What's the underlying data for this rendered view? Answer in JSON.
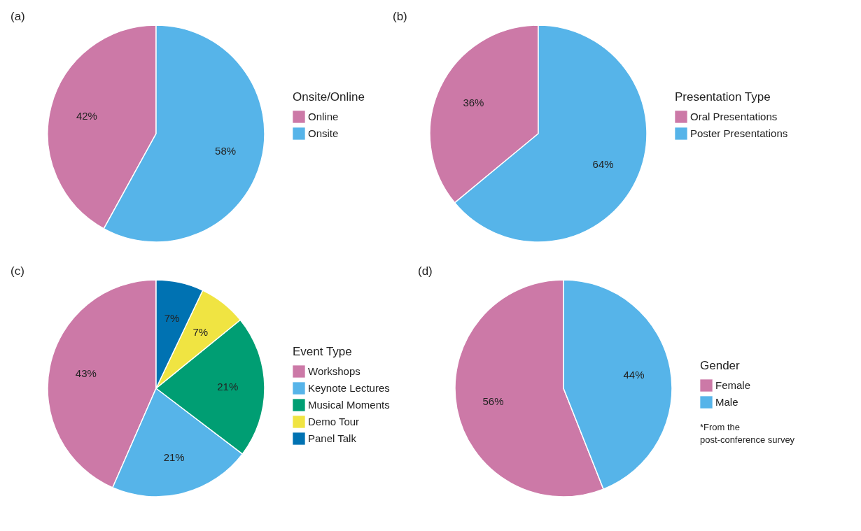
{
  "chart_data": [
    {
      "type": "pie",
      "title": "(a)",
      "legend_title": "Onsite/Online",
      "legend": "right",
      "categories": [
        "Online",
        "Onsite"
      ],
      "values": [
        42,
        58
      ],
      "colors": [
        "#cc79a7",
        "#56b4e9"
      ],
      "value_labels": [
        "42%",
        "58%"
      ]
    },
    {
      "type": "pie",
      "title": "(b)",
      "legend_title": "Presentation Type",
      "legend": "right",
      "categories": [
        "Oral Presentations",
        "Poster Presentations"
      ],
      "values": [
        36,
        64
      ],
      "colors": [
        "#cc79a7",
        "#56b4e9"
      ],
      "value_labels": [
        "36%",
        "64%"
      ]
    },
    {
      "type": "pie",
      "title": "(c)",
      "legend_title": "Event Type",
      "legend": "right",
      "categories": [
        "Workshops",
        "Keynote Lectures",
        "Musical Moments",
        "Demo Tour",
        "Panel Talk"
      ],
      "values": [
        43,
        21,
        21,
        7,
        7
      ],
      "colors": [
        "#cc79a7",
        "#56b4e9",
        "#009e73",
        "#f0e442",
        "#0072b2"
      ],
      "value_labels": [
        "43%",
        "21%",
        "21%",
        "7%",
        "7%"
      ]
    },
    {
      "type": "pie",
      "title": "(d)",
      "legend_title": "Gender",
      "legend": "right",
      "categories": [
        "Female",
        "Male"
      ],
      "values": [
        56,
        44
      ],
      "colors": [
        "#cc79a7",
        "#56b4e9"
      ],
      "value_labels": [
        "56%",
        "44%"
      ],
      "annotations": [
        "*From the post-conference survey"
      ]
    }
  ]
}
